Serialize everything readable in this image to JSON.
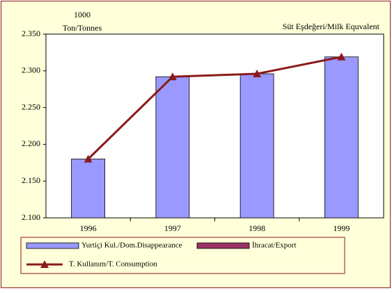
{
  "chart_data": {
    "type": "bar",
    "ylabel": [
      "1000",
      "Ton/Tonnes"
    ],
    "annotation": "Süt Eşdeğeri/Milk Equvalent",
    "categories": [
      "1996",
      "1997",
      "1998",
      "1999"
    ],
    "series": [
      {
        "name": "Yurtiçi Kul./Dom.Disappearance",
        "type": "bar",
        "color": "#9999ff",
        "values": [
          2.18,
          2.292,
          2.296,
          2.319
        ]
      },
      {
        "name": "İhracat/Export",
        "type": "bar",
        "color": "#993366",
        "values": [
          null,
          null,
          null,
          null
        ]
      },
      {
        "name": "T. Kullanım/T. Consumption",
        "type": "line",
        "color": "#8b1a1a",
        "values": [
          2.18,
          2.292,
          2.296,
          2.319
        ]
      }
    ],
    "ylim": [
      2.1,
      2.35
    ],
    "yticks": [
      {
        "value": 2.1,
        "label": "2.100"
      },
      {
        "value": 2.15,
        "label": "2.150"
      },
      {
        "value": 2.2,
        "label": "2.200"
      },
      {
        "value": 2.25,
        "label": "2.250"
      },
      {
        "value": 2.3,
        "label": "2.300"
      },
      {
        "value": 2.35,
        "label": "2.350"
      }
    ],
    "grid": false
  }
}
